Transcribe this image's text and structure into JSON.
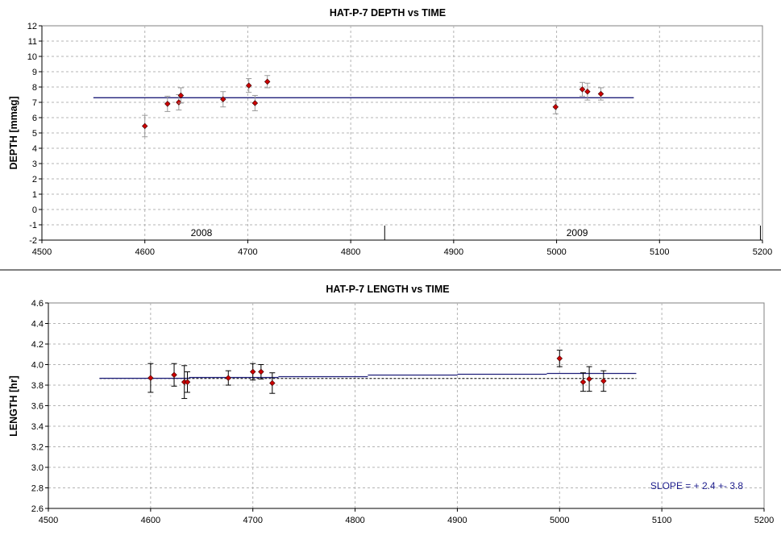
{
  "chart_data": [
    {
      "type": "scatter",
      "title": "HAT-P-7 DEPTH vs TIME",
      "xlabel": "",
      "ylabel": "DEPTH [mmag]",
      "xlim": [
        4500,
        5200
      ],
      "ylim": [
        -2,
        12
      ],
      "xticks": [
        4500,
        4600,
        4700,
        4800,
        4900,
        5000,
        5100,
        5200
      ],
      "yticks": [
        -2,
        -1,
        0,
        1,
        2,
        3,
        4,
        5,
        6,
        7,
        8,
        9,
        10,
        11,
        12
      ],
      "grid": true,
      "point_color": "#cc0000",
      "fit_color": "#1f1f7a",
      "x": [
        4600,
        4622,
        4633,
        4635,
        4676,
        4701,
        4707,
        4719,
        4999,
        5025,
        5030,
        5043
      ],
      "y": [
        5.45,
        6.9,
        7.0,
        7.45,
        7.2,
        8.1,
        6.95,
        8.35,
        6.7,
        7.85,
        7.7,
        7.55
      ],
      "err": [
        0.7,
        0.5,
        0.5,
        0.5,
        0.5,
        0.45,
        0.5,
        0.4,
        0.45,
        0.45,
        0.55,
        0.4
      ],
      "fit_line": {
        "x": [
          4550,
          5075
        ],
        "y": [
          7.3,
          7.3
        ]
      },
      "year_markers": [
        {
          "label": "2008",
          "x": 4655
        },
        {
          "x": 4833
        },
        {
          "label": "2009",
          "x": 5020
        },
        {
          "x": 5198
        }
      ]
    },
    {
      "type": "scatter",
      "title": "HAT-P-7 LENGTH vs TIME",
      "xlabel": "",
      "ylabel": "LENGTH [hr]",
      "xlim": [
        4500,
        5200
      ],
      "ylim": [
        2.6,
        4.6
      ],
      "xticks": [
        4500,
        4600,
        4700,
        4800,
        4900,
        5000,
        5100,
        5200
      ],
      "yticks": [
        2.6,
        2.8,
        3.0,
        3.2,
        3.4,
        3.6,
        3.8,
        4.0,
        4.2,
        4.4,
        4.6
      ],
      "grid": true,
      "point_color": "#cc0000",
      "fit_color": "#1f1f7a",
      "x": [
        4600,
        4623,
        4633,
        4636,
        4676,
        4700,
        4708,
        4719,
        5000,
        5023,
        5029,
        5043
      ],
      "y": [
        3.87,
        3.9,
        3.83,
        3.83,
        3.87,
        3.93,
        3.93,
        3.82,
        4.06,
        3.83,
        3.86,
        3.84
      ],
      "err": [
        0.14,
        0.11,
        0.16,
        0.1,
        0.07,
        0.08,
        0.07,
        0.1,
        0.08,
        0.09,
        0.12,
        0.1
      ],
      "fit_line": {
        "x": [
          4550,
          5075
        ],
        "y": [
          3.863,
          3.925
        ]
      },
      "mean_line": {
        "x": [
          4550,
          5075
        ],
        "y": [
          3.865,
          3.865
        ]
      },
      "annotation": "SLOPE = + 2.4 +- 3.8"
    }
  ]
}
